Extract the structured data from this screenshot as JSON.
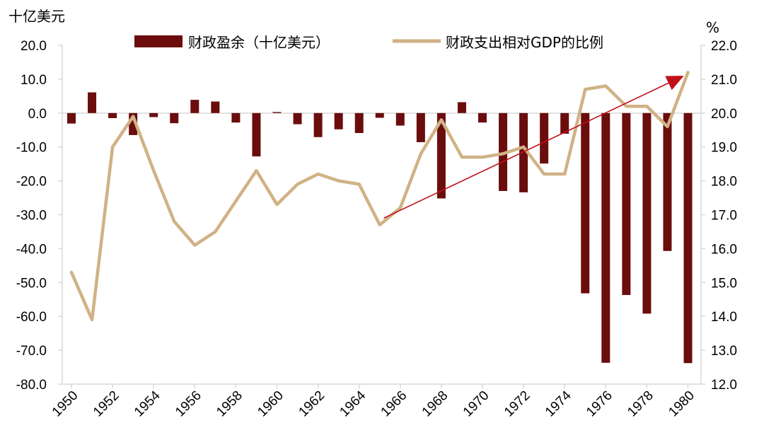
{
  "chart_data": {
    "type": "bar+line",
    "left_axis_unit": "十亿美元",
    "right_axis_unit": "%",
    "legend": {
      "bar_label": "财政盈余（十亿美元）",
      "line_label": "财政支出相对GDP的比例"
    },
    "colors": {
      "bar": "#6b0d0d",
      "line": "#d0b285",
      "trend": "#c0101a"
    },
    "x_tick_labels": [
      "1950",
      "1952",
      "1954",
      "1956",
      "1958",
      "1960",
      "1962",
      "1964",
      "1966",
      "1968",
      "1970",
      "1972",
      "1974",
      "1976",
      "1978",
      "1980"
    ],
    "left_ticks": [
      "20.0",
      "10.0",
      "0.0",
      "-10.0",
      "-20.0",
      "-30.0",
      "-40.0",
      "-50.0",
      "-60.0",
      "-70.0",
      "-80.0"
    ],
    "right_ticks": [
      "22.0",
      "21.0",
      "20.0",
      "19.0",
      "18.0",
      "17.0",
      "16.0",
      "15.0",
      "14.0",
      "13.0",
      "12.0"
    ],
    "left_ylim": [
      -80,
      20
    ],
    "right_ylim": [
      12,
      22
    ],
    "years": [
      1950,
      1951,
      1952,
      1953,
      1954,
      1955,
      1956,
      1957,
      1958,
      1959,
      1960,
      1961,
      1962,
      1963,
      1964,
      1965,
      1966,
      1967,
      1968,
      1969,
      1970,
      1971,
      1972,
      1973,
      1974,
      1975,
      1976,
      1977,
      1978,
      1979,
      1980
    ],
    "series": [
      {
        "name": "财政盈余（十亿美元）",
        "type": "bar",
        "axis": "left",
        "values": [
          -3.1,
          6.1,
          -1.5,
          -6.5,
          -1.2,
          -3.0,
          3.9,
          3.4,
          -2.8,
          -12.8,
          0.3,
          -3.3,
          -7.1,
          -4.8,
          -5.9,
          -1.4,
          -3.7,
          -8.6,
          -25.2,
          3.2,
          -2.8,
          -23.0,
          -23.4,
          -14.9,
          -6.1,
          -53.2,
          -73.7,
          -53.7,
          -59.2,
          -40.7,
          -73.8
        ]
      },
      {
        "name": "财政支出相对GDP的比例",
        "type": "line",
        "axis": "right",
        "values": [
          15.3,
          13.9,
          19.0,
          19.9,
          18.3,
          16.8,
          16.1,
          16.5,
          17.4,
          18.3,
          17.3,
          17.9,
          18.2,
          18.0,
          17.9,
          16.7,
          17.2,
          18.8,
          19.8,
          18.7,
          18.7,
          18.8,
          19.0,
          18.2,
          18.2,
          20.7,
          20.8,
          20.2,
          20.2,
          19.6,
          21.2
        ]
      }
    ],
    "trend_arrow": {
      "from": [
        1965.2,
        16.9
      ],
      "to": [
        1979.8,
        21.1
      ]
    },
    "grid": false
  }
}
